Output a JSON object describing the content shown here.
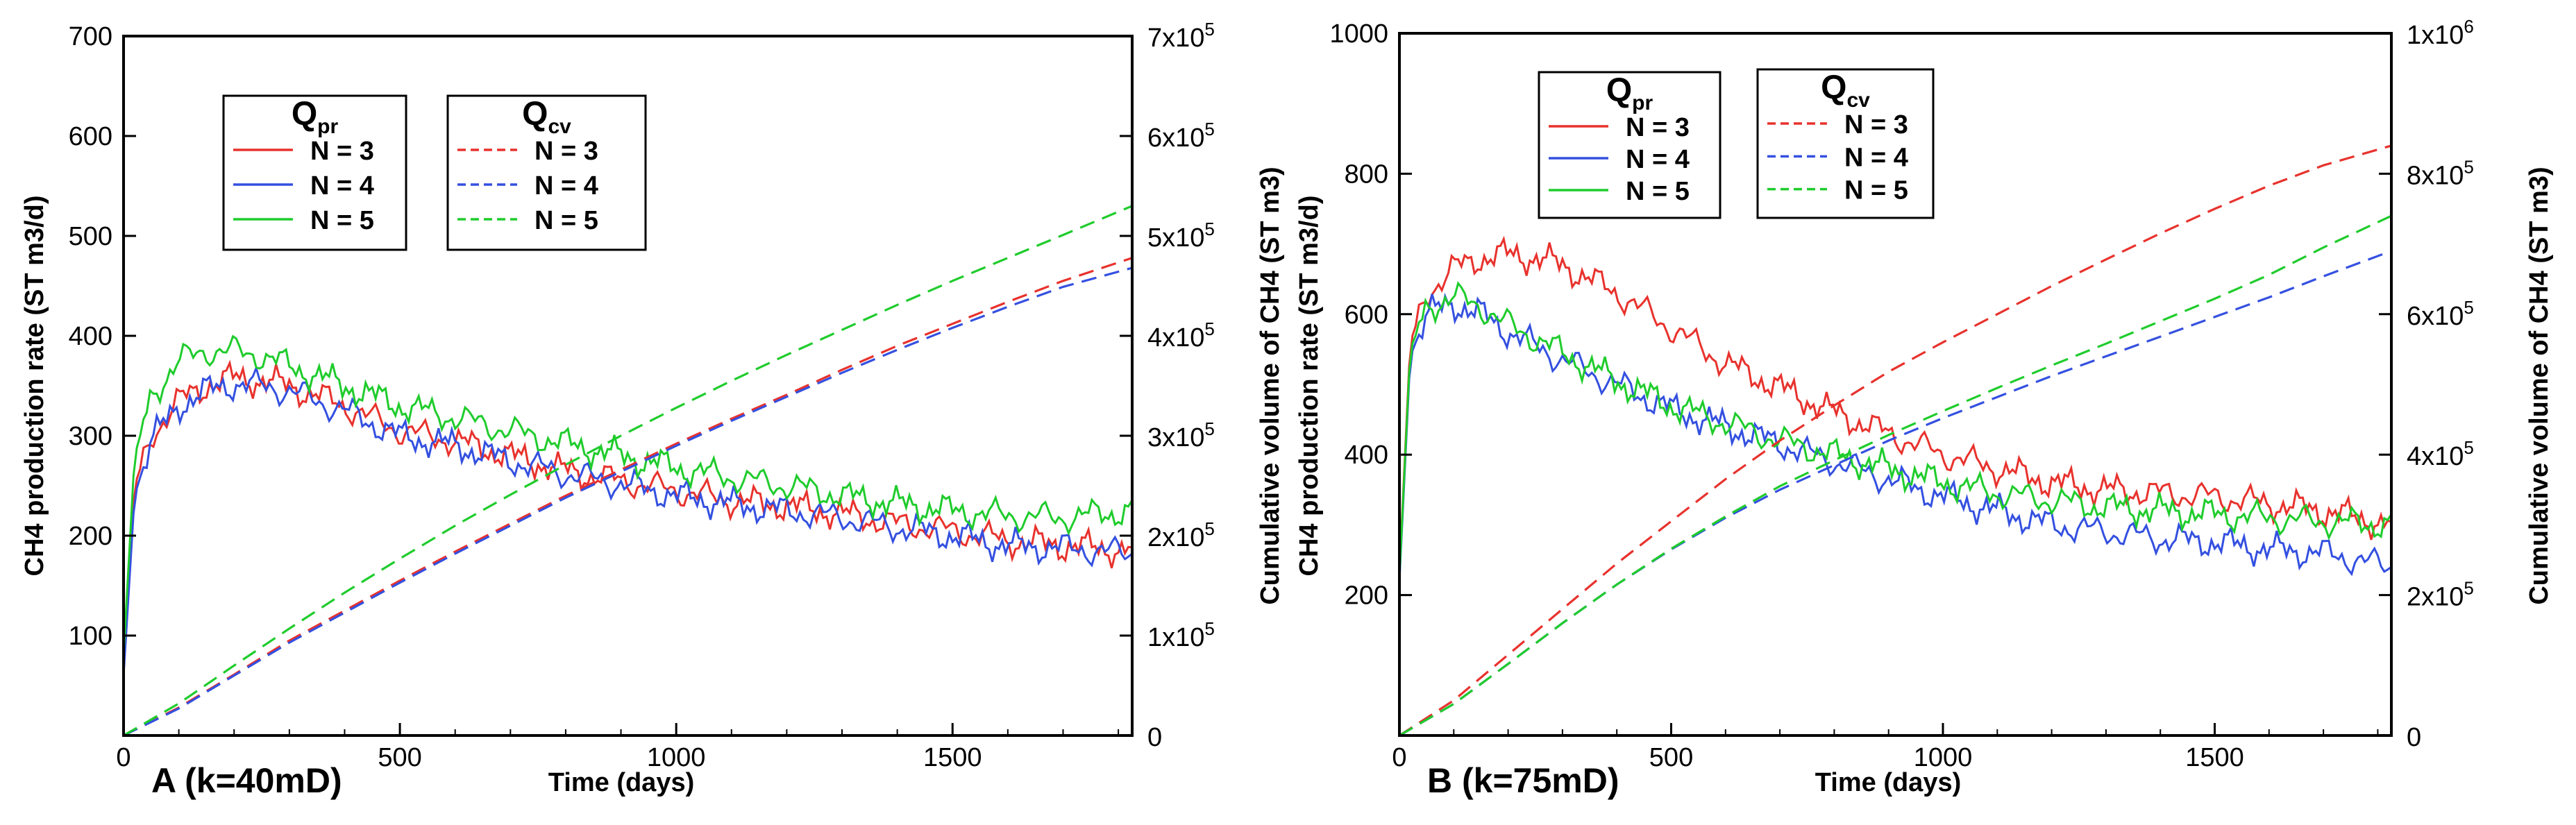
{
  "chart_data": [
    {
      "type": "line",
      "panel_label": "A (k=40mD)",
      "xlabel": "Time (days)",
      "ylabel_left": "CH4 production rate (ST m3/d)",
      "ylabel_right": "Cumulative volume of CH4 (ST m3)",
      "xlim": [
        0,
        1825
      ],
      "ylim_left": [
        0,
        700
      ],
      "ylim_right": [
        0,
        700000
      ],
      "x_ticks": [
        "0",
        "500",
        "1000",
        "1500"
      ],
      "x_tick_values": [
        0,
        500,
        1000,
        1500
      ],
      "y_left_ticks": [
        "100",
        "200",
        "300",
        "400",
        "500",
        "600",
        "700"
      ],
      "y_left_tick_values": [
        100,
        200,
        300,
        400,
        500,
        600,
        700
      ],
      "y_right_ticks": [
        {
          "value": 0,
          "base": "0",
          "exp": ""
        },
        {
          "value": 100000,
          "base": "1x10",
          "exp": "5"
        },
        {
          "value": 200000,
          "base": "2x10",
          "exp": "5"
        },
        {
          "value": 300000,
          "base": "3x10",
          "exp": "5"
        },
        {
          "value": 400000,
          "base": "4x10",
          "exp": "5"
        },
        {
          "value": 500000,
          "base": "5x10",
          "exp": "5"
        },
        {
          "value": 600000,
          "base": "6x10",
          "exp": "5"
        },
        {
          "value": 700000,
          "base": "7x10",
          "exp": "5"
        }
      ],
      "grid": false,
      "legend_groups": [
        {
          "title": "Q",
          "subscript": "pr",
          "style": "solid",
          "entries": [
            "N = 3",
            "N = 4",
            "N = 5"
          ]
        },
        {
          "title": "Q",
          "subscript": "cv",
          "style": "dashed",
          "entries": [
            "N = 3",
            "N = 4",
            "N = 5"
          ]
        }
      ],
      "colors": {
        "N3": "#e8322d",
        "N4": "#3450e0",
        "N5": "#1fcc2c"
      },
      "series": [
        {
          "name": "N = 3",
          "axis": "left",
          "style": "solid",
          "color": "#e8322d",
          "x": [
            0,
            20,
            50,
            100,
            150,
            200,
            250,
            300,
            400,
            500,
            600,
            700,
            800,
            900,
            1000,
            1100,
            1200,
            1300,
            1400,
            1500,
            1600,
            1700,
            1825
          ],
          "y": [
            80,
            250,
            300,
            335,
            350,
            358,
            355,
            350,
            330,
            305,
            295,
            280,
            265,
            255,
            245,
            235,
            230,
            222,
            212,
            205,
            195,
            190,
            185
          ]
        },
        {
          "name": "N = 4",
          "axis": "left",
          "style": "solid",
          "color": "#3450e0",
          "x": [
            0,
            20,
            50,
            100,
            150,
            200,
            250,
            300,
            400,
            500,
            600,
            700,
            800,
            900,
            1000,
            1100,
            1200,
            1300,
            1400,
            1500,
            1600,
            1700,
            1825
          ],
          "y": [
            60,
            240,
            295,
            330,
            345,
            352,
            350,
            345,
            325,
            300,
            290,
            275,
            262,
            252,
            240,
            232,
            225,
            218,
            208,
            200,
            190,
            188,
            182
          ]
        },
        {
          "name": "N = 5",
          "axis": "left",
          "style": "solid",
          "color": "#1fcc2c",
          "x": [
            0,
            20,
            50,
            100,
            150,
            200,
            250,
            300,
            400,
            500,
            600,
            700,
            800,
            900,
            1000,
            1100,
            1200,
            1300,
            1400,
            1500,
            1600,
            1700,
            1825
          ],
          "y": [
            80,
            280,
            340,
            375,
            385,
            385,
            380,
            370,
            350,
            330,
            318,
            305,
            292,
            280,
            268,
            258,
            250,
            240,
            232,
            225,
            220,
            218,
            225
          ]
        },
        {
          "name": "N = 3",
          "axis": "right",
          "style": "dashed",
          "color": "#e8322d",
          "x": [
            0,
            100,
            200,
            300,
            400,
            500,
            600,
            700,
            800,
            900,
            1000,
            1100,
            1200,
            1300,
            1400,
            1500,
            1600,
            1700,
            1825
          ],
          "y": [
            0,
            28000,
            61000,
            95000,
            125000,
            155000,
            184000,
            212000,
            240000,
            266000,
            292000,
            317000,
            341000,
            366000,
            390000,
            412000,
            434000,
            455000,
            478000
          ]
        },
        {
          "name": "N = 4",
          "axis": "right",
          "style": "dashed",
          "color": "#3450e0",
          "x": [
            0,
            100,
            200,
            300,
            400,
            500,
            600,
            700,
            800,
            900,
            1000,
            1100,
            1200,
            1300,
            1400,
            1500,
            1600,
            1700,
            1825
          ],
          "y": [
            0,
            27000,
            60000,
            93000,
            123000,
            153000,
            182000,
            210000,
            238000,
            264000,
            290000,
            315000,
            339000,
            363000,
            386000,
            408000,
            429000,
            449000,
            468000
          ]
        },
        {
          "name": "N = 5",
          "axis": "right",
          "style": "dashed",
          "color": "#1fcc2c",
          "x": [
            0,
            100,
            200,
            300,
            400,
            500,
            600,
            700,
            800,
            900,
            1000,
            1100,
            1200,
            1300,
            1400,
            1500,
            1600,
            1700,
            1825
          ],
          "y": [
            0,
            32000,
            70000,
            107000,
            143000,
            177000,
            210000,
            241000,
            271000,
            300000,
            328000,
            355000,
            381000,
            406000,
            431000,
            455000,
            478000,
            501000,
            530000
          ]
        }
      ]
    },
    {
      "type": "line",
      "panel_label": "B (k=75mD)",
      "xlabel": "Time (days)",
      "ylabel_left": "CH4 production rate (ST m3/d)",
      "ylabel_right": "Cumulative volume of CH4 (ST m3)",
      "xlim": [
        0,
        1825
      ],
      "ylim_left": [
        0,
        1000
      ],
      "ylim_right": [
        0,
        1000000
      ],
      "x_ticks": [
        "0",
        "500",
        "1000",
        "1500"
      ],
      "x_tick_values": [
        0,
        500,
        1000,
        1500
      ],
      "y_left_ticks": [
        "200",
        "400",
        "600",
        "800",
        "1000"
      ],
      "y_left_tick_values": [
        200,
        400,
        600,
        800,
        1000
      ],
      "y_right_ticks": [
        {
          "value": 0,
          "base": "0",
          "exp": ""
        },
        {
          "value": 200000,
          "base": "2x10",
          "exp": "5"
        },
        {
          "value": 400000,
          "base": "4x10",
          "exp": "5"
        },
        {
          "value": 600000,
          "base": "6x10",
          "exp": "5"
        },
        {
          "value": 800000,
          "base": "8x10",
          "exp": "5"
        },
        {
          "value": 1000000,
          "base": "1x10",
          "exp": "6"
        }
      ],
      "grid": false,
      "legend_groups": [
        {
          "title": "Q",
          "subscript": "pr",
          "style": "solid",
          "entries": [
            "N = 3",
            "N = 4",
            "N = 5"
          ]
        },
        {
          "title": "Q",
          "subscript": "cv",
          "style": "dashed",
          "entries": [
            "N = 3",
            "N = 4",
            "N = 5"
          ]
        }
      ],
      "colors": {
        "N3": "#e8322d",
        "N4": "#3450e0",
        "N5": "#1fcc2c"
      },
      "series": [
        {
          "name": "N = 3",
          "axis": "left",
          "style": "solid",
          "color": "#e8322d",
          "x": [
            0,
            20,
            50,
            100,
            150,
            200,
            250,
            300,
            400,
            500,
            600,
            700,
            800,
            900,
            1000,
            1100,
            1200,
            1300,
            1400,
            1500,
            1600,
            1700,
            1825
          ],
          "y": [
            230,
            560,
            630,
            665,
            680,
            685,
            680,
            670,
            630,
            580,
            530,
            495,
            460,
            430,
            400,
            380,
            360,
            350,
            345,
            340,
            330,
            320,
            300
          ]
        },
        {
          "name": "N = 4",
          "axis": "left",
          "style": "solid",
          "color": "#3450e0",
          "x": [
            0,
            20,
            50,
            100,
            150,
            200,
            250,
            300,
            400,
            500,
            600,
            700,
            800,
            900,
            1000,
            1100,
            1200,
            1300,
            1400,
            1500,
            1600,
            1700,
            1825
          ],
          "y": [
            220,
            540,
            600,
            615,
            600,
            575,
            555,
            535,
            500,
            465,
            440,
            415,
            390,
            365,
            340,
            320,
            300,
            290,
            280,
            275,
            265,
            260,
            240
          ]
        },
        {
          "name": "N = 5",
          "axis": "left",
          "style": "solid",
          "color": "#1fcc2c",
          "x": [
            0,
            20,
            50,
            100,
            150,
            200,
            250,
            300,
            400,
            500,
            600,
            700,
            800,
            900,
            1000,
            1100,
            1200,
            1300,
            1400,
            1500,
            1600,
            1700,
            1825
          ],
          "y": [
            225,
            550,
            610,
            625,
            610,
            585,
            565,
            545,
            505,
            470,
            445,
            420,
            400,
            380,
            360,
            345,
            335,
            325,
            320,
            315,
            310,
            305,
            300
          ]
        },
        {
          "name": "N = 3",
          "axis": "right",
          "style": "dashed",
          "color": "#e8322d",
          "x": [
            0,
            100,
            200,
            300,
            400,
            500,
            600,
            700,
            800,
            900,
            1000,
            1100,
            1200,
            1300,
            1400,
            1500,
            1600,
            1700,
            1825
          ],
          "y": [
            0,
            50000,
            115000,
            180000,
            245000,
            305000,
            365000,
            420000,
            470000,
            518000,
            560000,
            600000,
            640000,
            678000,
            715000,
            750000,
            783000,
            812000,
            840000
          ]
        },
        {
          "name": "N = 4",
          "axis": "right",
          "style": "dashed",
          "color": "#3450e0",
          "x": [
            0,
            100,
            200,
            300,
            400,
            500,
            600,
            700,
            800,
            900,
            1000,
            1100,
            1200,
            1300,
            1400,
            1500,
            1600,
            1700,
            1825
          ],
          "y": [
            0,
            45000,
            102000,
            160000,
            215000,
            265000,
            310000,
            350000,
            385000,
            420000,
            452000,
            482000,
            512000,
            540000,
            568000,
            596000,
            624000,
            654000,
            690000
          ]
        },
        {
          "name": "N = 5",
          "axis": "right",
          "style": "dashed",
          "color": "#1fcc2c",
          "x": [
            0,
            100,
            200,
            300,
            400,
            500,
            600,
            700,
            800,
            900,
            1000,
            1100,
            1200,
            1300,
            1400,
            1500,
            1600,
            1700,
            1825
          ],
          "y": [
            0,
            45000,
            102000,
            160000,
            215000,
            266000,
            312000,
            355000,
            392000,
            428000,
            462000,
            495000,
            527000,
            558000,
            590000,
            622000,
            656000,
            695000,
            740000
          ]
        }
      ]
    }
  ]
}
